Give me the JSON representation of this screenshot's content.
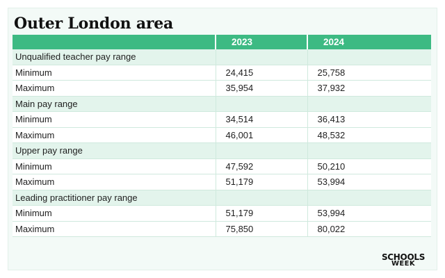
{
  "title": "Outer London area",
  "table": {
    "headers": [
      "",
      "2023",
      "2024"
    ],
    "sections": [
      {
        "label": "Unqualified teacher pay range",
        "rows": [
          {
            "label": "Minimum",
            "v2023": "24,415",
            "v2024": "25,758"
          },
          {
            "label": "Maximum",
            "v2023": "35,954",
            "v2024": "37,932"
          }
        ]
      },
      {
        "label": "Main pay range",
        "rows": [
          {
            "label": "Minimum",
            "v2023": "34,514",
            "v2024": "36,413"
          },
          {
            "label": "Maximum",
            "v2023": "46,001",
            "v2024": "48,532"
          }
        ]
      },
      {
        "label": "Upper pay range",
        "rows": [
          {
            "label": "Minimum",
            "v2023": "47,592",
            "v2024": "50,210"
          },
          {
            "label": "Maximum",
            "v2023": "51,179",
            "v2024": "53,994"
          }
        ]
      },
      {
        "label": "Leading practitioner pay range",
        "rows": [
          {
            "label": "Minimum",
            "v2023": "51,179",
            "v2024": "53,994"
          },
          {
            "label": "Maximum",
            "v2023": "75,850",
            "v2024": "80,022"
          }
        ]
      }
    ]
  },
  "logo": {
    "line1": "SCHOOLS",
    "line2": "WEEK"
  },
  "colors": {
    "header_bg": "#3dba83",
    "section_bg": "#e3f4ec",
    "card_bg": "#f3faf7",
    "grid": "#cfe9dd"
  }
}
